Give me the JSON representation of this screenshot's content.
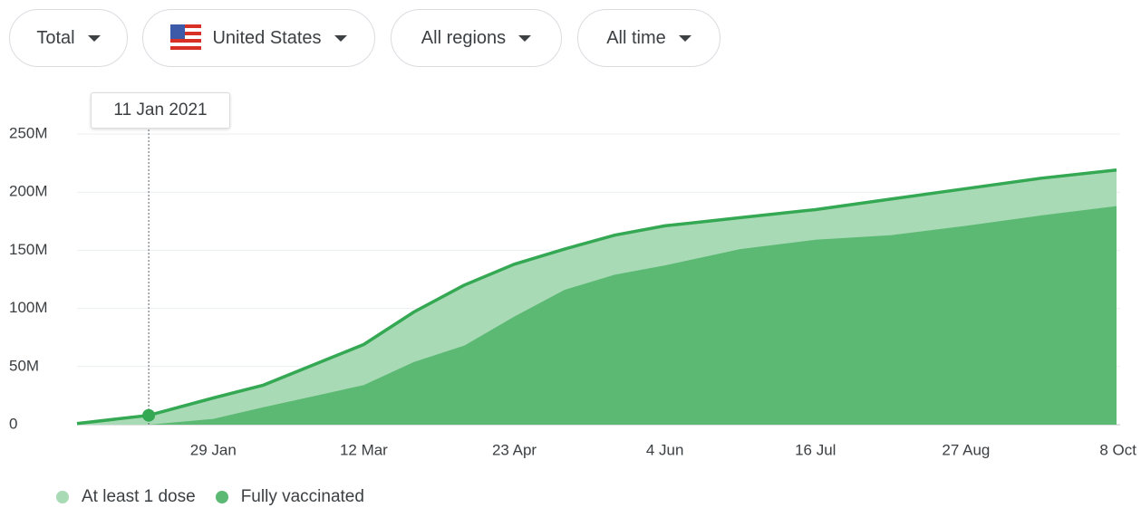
{
  "controls": [
    "Total",
    "United States",
    "All regions",
    "All time"
  ],
  "chart_data": {
    "type": "area",
    "tooltip": "11 Jan 2021",
    "x": [
      "2020-12-22",
      "2021-01-11",
      "2021-01-29",
      "2021-02-12",
      "2021-03-12",
      "2021-03-26",
      "2021-04-09",
      "2021-04-23",
      "2021-05-07",
      "2021-05-21",
      "2021-06-04",
      "2021-06-25",
      "2021-07-16",
      "2021-08-06",
      "2021-08-27",
      "2021-09-17",
      "2021-10-08"
    ],
    "series": [
      {
        "name": "At least 1 dose",
        "color": "#a8dab5",
        "line_color": "#34a853",
        "values": [
          1000000,
          8000000,
          23000000,
          34000000,
          69000000,
          97000000,
          120000000,
          138000000,
          151000000,
          163000000,
          171000000,
          178000000,
          185000000,
          194000000,
          203000000,
          212000000,
          219000000
        ]
      },
      {
        "name": "Fully vaccinated",
        "color": "#5bb974",
        "values": [
          0,
          0,
          5000000,
          15000000,
          34000000,
          54000000,
          68000000,
          93000000,
          116000000,
          129000000,
          137000000,
          151000000,
          159000000,
          163000000,
          171000000,
          180000000,
          188000000
        ]
      }
    ],
    "xlim": [
      "2020-12-22",
      "2021-10-08"
    ],
    "xticks": [
      {
        "value": "2021-01-29",
        "label": "29 Jan"
      },
      {
        "value": "2021-03-12",
        "label": "12 Mar"
      },
      {
        "value": "2021-04-23",
        "label": "23 Apr"
      },
      {
        "value": "2021-06-04",
        "label": "4 Jun"
      },
      {
        "value": "2021-07-16",
        "label": "16 Jul"
      },
      {
        "value": "2021-08-27",
        "label": "27 Aug"
      },
      {
        "value": "2021-10-08",
        "label": "8 Oct"
      }
    ],
    "ylim": [
      0,
      250000000
    ],
    "yticks": [
      0,
      {
        "value": 50000000,
        "label": "50M"
      },
      {
        "value": 100000000,
        "label": "100M"
      },
      {
        "value": 150000000,
        "label": "150M"
      },
      {
        "value": 200000000,
        "label": "200M"
      },
      {
        "value": 250000000,
        "label": "250M"
      }
    ],
    "grid": true,
    "legend": "bottom-left"
  }
}
